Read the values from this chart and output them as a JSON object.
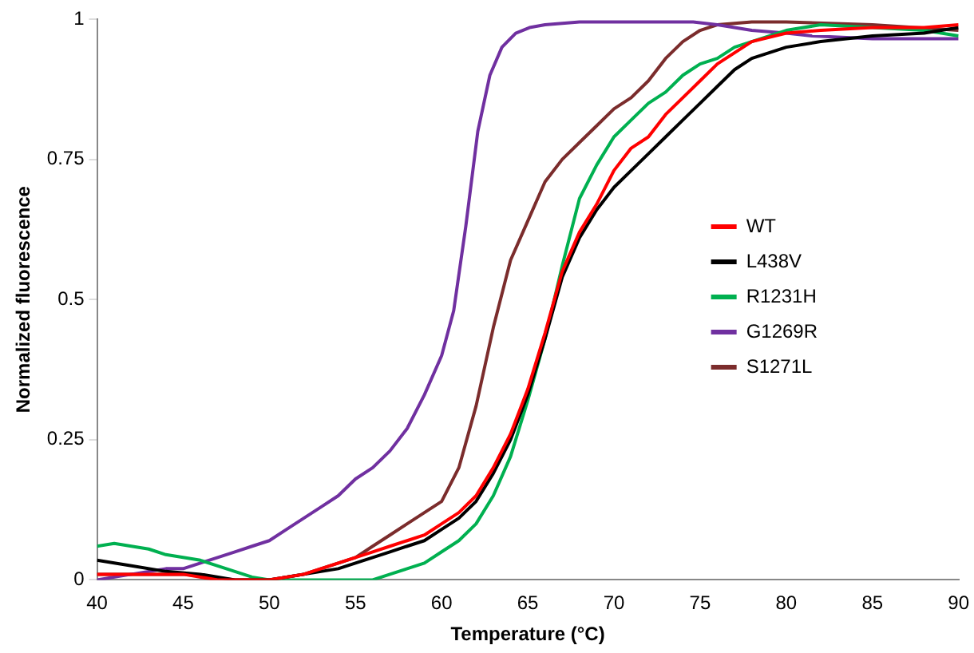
{
  "chart_data": {
    "type": "line",
    "xlabel": "Temperature (°C)",
    "ylabel": "Normalized fluorescence",
    "xlim": [
      40,
      90
    ],
    "ylim": [
      0,
      1
    ],
    "xticks": [
      40,
      45,
      50,
      55,
      60,
      65,
      70,
      75,
      80,
      85,
      90
    ],
    "yticks": [
      0,
      0.25,
      0.5,
      0.75,
      1
    ],
    "grid": false,
    "legend": "center right",
    "marker": "none",
    "line_style": "solid",
    "series": [
      {
        "name": "WT",
        "color": "#ff0000",
        "x": [
          40,
          42,
          45,
          47,
          50,
          52,
          54,
          55,
          56,
          57,
          58,
          59,
          60,
          61,
          62,
          63,
          64,
          65,
          66,
          67,
          68,
          69,
          70,
          71,
          72,
          73,
          74,
          75,
          76,
          77,
          78,
          80,
          82,
          85,
          88,
          90
        ],
        "values": [
          0.01,
          0.01,
          0.01,
          0,
          0,
          0.01,
          0.03,
          0.04,
          0.05,
          0.06,
          0.07,
          0.08,
          0.1,
          0.12,
          0.15,
          0.2,
          0.26,
          0.34,
          0.44,
          0.55,
          0.62,
          0.67,
          0.73,
          0.77,
          0.79,
          0.83,
          0.86,
          0.89,
          0.92,
          0.94,
          0.96,
          0.975,
          0.98,
          0.985,
          0.985,
          0.99
        ]
      },
      {
        "name": "L438V",
        "color": "#000000",
        "x": [
          40,
          42,
          44,
          46,
          48,
          50,
          52,
          54,
          55,
          56,
          57,
          58,
          59,
          60,
          61,
          62,
          63,
          64,
          65,
          66,
          67,
          68,
          69,
          70,
          71,
          72,
          73,
          74,
          75,
          76,
          77,
          78,
          80,
          82,
          85,
          88,
          90
        ],
        "values": [
          0.035,
          0.025,
          0.015,
          0.01,
          0,
          0,
          0.01,
          0.02,
          0.03,
          0.04,
          0.05,
          0.06,
          0.07,
          0.09,
          0.11,
          0.14,
          0.19,
          0.25,
          0.33,
          0.43,
          0.54,
          0.61,
          0.66,
          0.7,
          0.73,
          0.76,
          0.79,
          0.82,
          0.85,
          0.88,
          0.91,
          0.93,
          0.95,
          0.96,
          0.97,
          0.975,
          0.985
        ]
      },
      {
        "name": "R1231H",
        "color": "#00b050",
        "x": [
          40,
          41,
          42,
          43,
          44,
          45,
          46,
          47,
          48,
          49,
          50,
          52,
          54,
          55,
          56,
          57,
          58,
          59,
          60,
          61,
          62,
          63,
          64,
          65,
          66,
          67,
          68,
          69,
          70,
          71,
          72,
          73,
          74,
          75,
          76,
          77,
          78,
          80,
          82,
          85,
          88,
          90
        ],
        "values": [
          0.06,
          0.065,
          0.06,
          0.055,
          0.045,
          0.04,
          0.035,
          0.025,
          0.015,
          0.005,
          0,
          0,
          0,
          0,
          0,
          0.01,
          0.02,
          0.03,
          0.05,
          0.07,
          0.1,
          0.15,
          0.22,
          0.32,
          0.43,
          0.56,
          0.68,
          0.74,
          0.79,
          0.82,
          0.85,
          0.87,
          0.9,
          0.92,
          0.93,
          0.95,
          0.96,
          0.98,
          0.99,
          0.985,
          0.98,
          0.97
        ]
      },
      {
        "name": "G1269R",
        "color": "#7030a0",
        "x": [
          40,
          42,
          44,
          45,
          46,
          47,
          48,
          49,
          50,
          51,
          52,
          53,
          54,
          55,
          56,
          57,
          58,
          59,
          60,
          60.7,
          61.4,
          62.1,
          62.8,
          63.5,
          64.3,
          65.1,
          66,
          68,
          70,
          72,
          74.6,
          76,
          78,
          80,
          81.5,
          85,
          88,
          90
        ],
        "values": [
          0,
          0.01,
          0.02,
          0.02,
          0.03,
          0.04,
          0.05,
          0.06,
          0.07,
          0.09,
          0.11,
          0.13,
          0.15,
          0.18,
          0.2,
          0.23,
          0.27,
          0.33,
          0.4,
          0.48,
          0.63,
          0.8,
          0.9,
          0.95,
          0.975,
          0.985,
          0.99,
          0.995,
          0.995,
          0.995,
          0.995,
          0.99,
          0.98,
          0.975,
          0.97,
          0.965,
          0.965,
          0.965
        ]
      },
      {
        "name": "S1271L",
        "color": "#7b2c2c",
        "x": [
          40,
          45,
          48,
          50,
          52,
          54,
          55,
          56,
          57,
          58,
          59,
          60,
          61,
          62,
          63,
          64,
          65,
          66,
          67,
          68,
          69,
          70,
          71,
          72,
          73,
          74,
          75,
          76,
          78,
          80,
          85,
          90
        ],
        "values": [
          0.01,
          0.01,
          0,
          0,
          0.01,
          0.03,
          0.04,
          0.06,
          0.08,
          0.1,
          0.12,
          0.14,
          0.2,
          0.31,
          0.45,
          0.57,
          0.64,
          0.71,
          0.75,
          0.78,
          0.81,
          0.84,
          0.86,
          0.89,
          0.93,
          0.96,
          0.98,
          0.99,
          0.995,
          0.995,
          0.99,
          0.98
        ]
      }
    ]
  }
}
